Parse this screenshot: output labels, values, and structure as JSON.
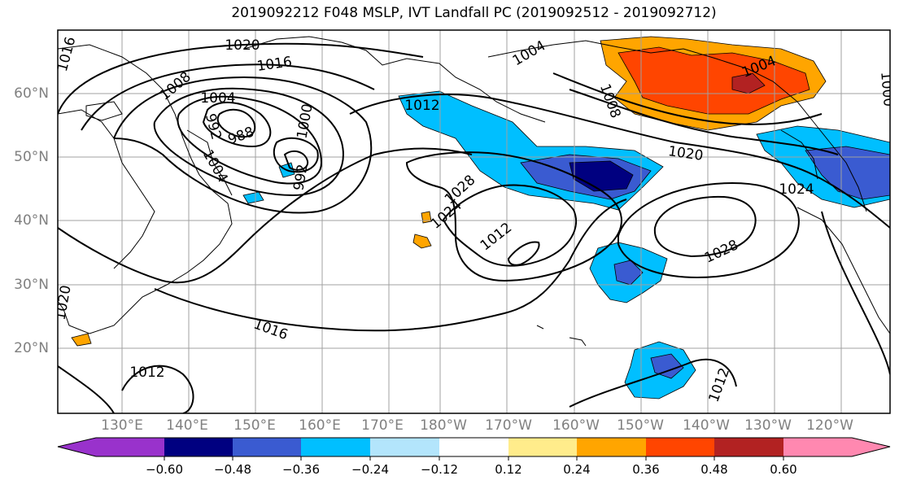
{
  "title": "2019092212 F048 MSLP, IVT Landfall PC (2019092512 - 2019092712)",
  "lon_labels": [
    "130°E",
    "140°E",
    "150°E",
    "160°E",
    "170°E",
    "180°W",
    "170°W",
    "160°W",
    "150°W",
    "140°W",
    "130°W",
    "120°W"
  ],
  "lat_labels": [
    "60°N",
    "50°N",
    "40°N",
    "30°N",
    "20°N"
  ],
  "contour_labels": [
    "1016",
    "1020",
    "1016",
    "1008",
    "1004",
    "992",
    "988",
    "1000",
    "992",
    "1004",
    "1012",
    "1004",
    "1008",
    "1004",
    "1020",
    "1024",
    "1000",
    "1028",
    "1024",
    "1012",
    "1028",
    "1016",
    "1012",
    "1012",
    "1020"
  ],
  "colorbar": {
    "ticks": [
      "−0.60",
      "−0.48",
      "−0.36",
      "−0.24",
      "−0.12",
      "0.12",
      "0.24",
      "0.36",
      "0.48",
      "0.60"
    ],
    "colors": [
      "#9932cc",
      "#000080",
      "#3a5bd1",
      "#00bfff",
      "#b3e5fc",
      "#ffffff",
      "#ffec8b",
      "#ffa500",
      "#ff4500",
      "#b22222",
      "#ff88b0"
    ]
  }
}
